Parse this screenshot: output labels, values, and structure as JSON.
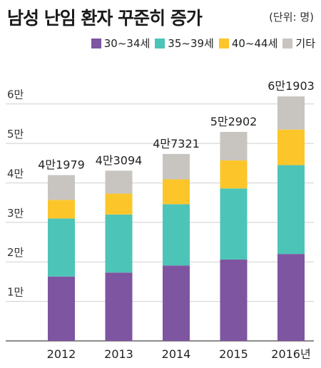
{
  "header": {
    "title": "남성 난임 환자 꾸준히 증가",
    "unit": "(단위: 명)"
  },
  "chart_data": {
    "type": "bar",
    "stacked": true,
    "categories": [
      "2012",
      "2013",
      "2014",
      "2015",
      "2016년"
    ],
    "series": [
      {
        "name": "30~34세",
        "color": "#7e55a1",
        "values": [
          16300,
          17300,
          19100,
          20600,
          22000
        ]
      },
      {
        "name": "35~39세",
        "color": "#4dc4b8",
        "values": [
          14700,
          14700,
          15500,
          18000,
          22500
        ]
      },
      {
        "name": "40~44세",
        "color": "#fcc62a",
        "values": [
          4700,
          5300,
          6300,
          7100,
          9000
        ]
      },
      {
        "name": "기타",
        "color": "#c8c5c0",
        "values": [
          6279,
          5794,
          6421,
          7202,
          8403
        ]
      }
    ],
    "totals": [
      "4만1979",
      "4만3094",
      "4만7321",
      "5만2902",
      "6만1903"
    ],
    "ylim": [
      0,
      65000
    ],
    "yticks": [
      {
        "value": 10000,
        "label": "1만"
      },
      {
        "value": 20000,
        "label": "2만"
      },
      {
        "value": 30000,
        "label": "3만"
      },
      {
        "value": 40000,
        "label": "4만"
      },
      {
        "value": 50000,
        "label": "5만"
      },
      {
        "value": 60000,
        "label": "6만"
      }
    ],
    "grid": true,
    "legend_position": "top-right"
  }
}
